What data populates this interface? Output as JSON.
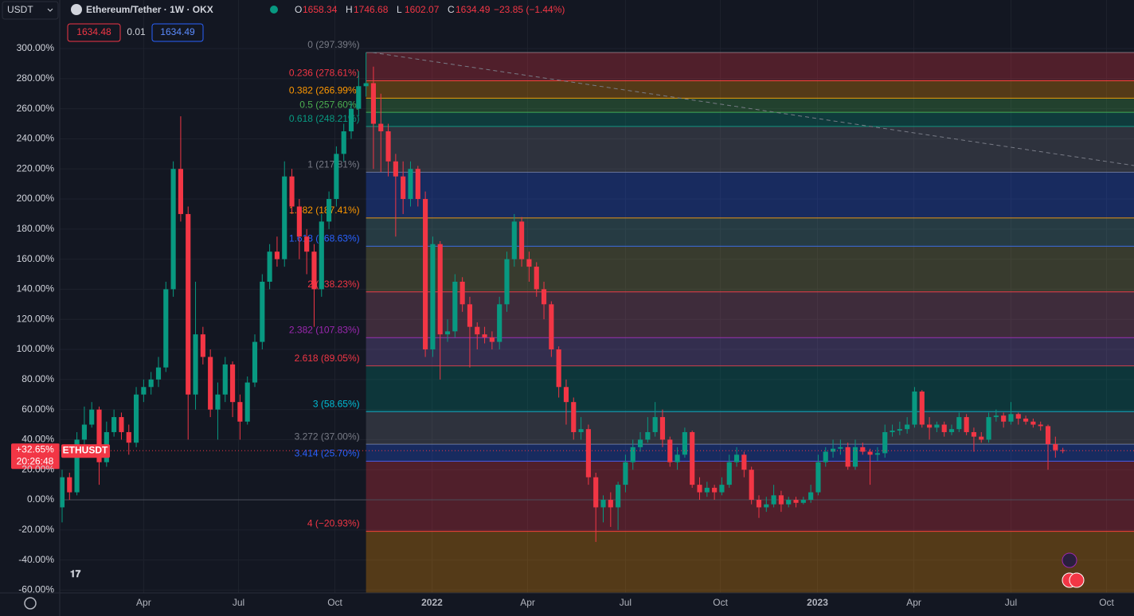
{
  "toolbar": {
    "symbol_menu": "USDT",
    "title": "Ethereum/Tether · 1W · OKX",
    "ohlc": [
      {
        "label": "O",
        "value": "1658.34"
      },
      {
        "label": "H",
        "value": "1746.68"
      },
      {
        "label": "L",
        "value": "1602.07"
      },
      {
        "label": "C",
        "value": "1634.49"
      }
    ],
    "change": "−23.85 (−1.44%)",
    "bid": "1634.48",
    "spread": "0.01",
    "ask": "1634.49"
  },
  "chart_data": {
    "type": "candlestick",
    "up_color": "#089981",
    "down_color": "#f23645",
    "open": [
      -5,
      15,
      5,
      40,
      50,
      60,
      25,
      45,
      55,
      45,
      38,
      70,
      75,
      80,
      88,
      140,
      220,
      190,
      70,
      110,
      95,
      60,
      70,
      90,
      65,
      52,
      78,
      105,
      145,
      165,
      160,
      215,
      195,
      175,
      165,
      140,
      185,
      200,
      230,
      245,
      260,
      275,
      277,
      250,
      245,
      225,
      215,
      200,
      220,
      200,
      100,
      170,
      110,
      112,
      145,
      130,
      115,
      110,
      108,
      105,
      130,
      160,
      185,
      160,
      155,
      140,
      130,
      100,
      75,
      65,
      45,
      47,
      15,
      -5,
      0,
      -5,
      10,
      25,
      35,
      40,
      45,
      55,
      40,
      25,
      30,
      45,
      10,
      5,
      8,
      5,
      10,
      25,
      30,
      20,
      0,
      -5,
      -3,
      3,
      -3,
      0,
      -2,
      0,
      5,
      25,
      32,
      34,
      35,
      22,
      35,
      32,
      30,
      31,
      45,
      46,
      47,
      50,
      72,
      50,
      48,
      50,
      45,
      47,
      55,
      45,
      42,
      40,
      55,
      56,
      52,
      57,
      54,
      52,
      50,
      49,
      37,
      33
    ],
    "high": [
      20,
      18,
      45,
      62,
      65,
      62,
      52,
      60,
      58,
      50,
      75,
      80,
      85,
      95,
      145,
      225,
      255,
      195,
      145,
      115,
      100,
      78,
      95,
      92,
      70,
      82,
      110,
      150,
      170,
      175,
      225,
      220,
      200,
      180,
      170,
      190,
      205,
      235,
      250,
      265,
      285,
      297.39,
      288,
      270,
      250,
      230,
      225,
      225,
      222,
      205,
      175,
      172,
      120,
      150,
      148,
      135,
      118,
      115,
      112,
      135,
      165,
      190,
      188,
      165,
      158,
      145,
      132,
      102,
      80,
      68,
      55,
      50,
      18,
      3,
      5,
      12,
      30,
      40,
      45,
      55,
      65,
      60,
      42,
      35,
      48,
      46,
      15,
      12,
      10,
      15,
      30,
      35,
      32,
      22,
      3,
      2,
      10,
      6,
      2,
      2,
      2,
      10,
      30,
      35,
      40,
      40,
      38,
      40,
      38,
      34,
      35,
      50,
      50,
      52,
      55,
      75,
      73,
      55,
      52,
      52,
      50,
      58,
      57,
      48,
      45,
      58,
      60,
      58,
      65,
      58,
      56,
      54,
      52,
      50,
      42,
      34.6
    ],
    "low": [
      -15,
      0,
      3,
      35,
      48,
      10,
      22,
      42,
      40,
      30,
      35,
      65,
      70,
      75,
      85,
      135,
      185,
      40,
      60,
      90,
      55,
      40,
      65,
      55,
      40,
      50,
      75,
      100,
      140,
      155,
      155,
      190,
      160,
      150,
      115,
      135,
      180,
      195,
      225,
      240,
      255,
      268,
      220,
      218,
      215,
      175,
      190,
      195,
      195,
      95,
      95,
      80,
      105,
      108,
      125,
      88,
      100,
      104,
      100,
      100,
      125,
      155,
      155,
      145,
      135,
      120,
      95,
      68,
      50,
      40,
      40,
      10,
      -28,
      -15,
      -18,
      -20,
      5,
      20,
      32,
      38,
      42,
      35,
      22,
      20,
      28,
      8,
      0,
      2,
      0,
      3,
      8,
      22,
      15,
      -3,
      -12,
      -8,
      -5,
      -8,
      -5,
      -5,
      -3,
      -2,
      3,
      22,
      28,
      30,
      20,
      20,
      30,
      10,
      26,
      28,
      42,
      43,
      44,
      48,
      48,
      40,
      45,
      42,
      43,
      45,
      43,
      32,
      38,
      38,
      52,
      48,
      50,
      50,
      50,
      48,
      46,
      20,
      28,
      31
    ],
    "close": [
      15,
      5,
      40,
      50,
      60,
      25,
      45,
      55,
      45,
      38,
      70,
      75,
      80,
      88,
      140,
      220,
      190,
      70,
      110,
      95,
      60,
      70,
      90,
      65,
      52,
      78,
      105,
      145,
      165,
      160,
      215,
      195,
      175,
      165,
      140,
      185,
      200,
      230,
      245,
      260,
      275,
      277,
      250,
      245,
      225,
      215,
      200,
      220,
      200,
      100,
      170,
      110,
      112,
      145,
      130,
      115,
      110,
      108,
      105,
      130,
      160,
      185,
      160,
      155,
      140,
      130,
      100,
      75,
      65,
      45,
      47,
      15,
      -5,
      0,
      -5,
      10,
      25,
      35,
      40,
      45,
      55,
      40,
      25,
      30,
      45,
      10,
      5,
      8,
      5,
      10,
      25,
      30,
      20,
      0,
      -5,
      -3,
      3,
      -3,
      0,
      -2,
      0,
      5,
      25,
      32,
      34,
      35,
      22,
      35,
      32,
      30,
      31,
      45,
      46,
      47,
      50,
      72,
      50,
      48,
      50,
      45,
      47,
      55,
      45,
      42,
      40,
      55,
      56,
      52,
      57,
      54,
      52,
      50,
      49,
      37,
      33,
      32.65
    ],
    "xlim": [
      -0.32,
      144.6
    ],
    "ylim": [
      -61.9,
      332.3
    ],
    "xticks": [
      {
        "value": 11,
        "label": "Apr"
      },
      {
        "value": 23.8,
        "label": "Jul"
      },
      {
        "value": 36.8,
        "label": "Oct"
      },
      {
        "value": 49.9,
        "label": "2022"
      },
      {
        "value": 62.8,
        "label": "Apr"
      },
      {
        "value": 76,
        "label": "Jul"
      },
      {
        "value": 88.8,
        "label": "Oct"
      },
      {
        "value": 101.9,
        "label": "2023"
      },
      {
        "value": 114.9,
        "label": "Apr"
      },
      {
        "value": 128,
        "label": "Jul"
      },
      {
        "value": 140.9,
        "label": "Oct"
      }
    ],
    "yticks": [
      {
        "value": 300,
        "label": "300.00%"
      },
      {
        "value": 280,
        "label": "280.00%"
      },
      {
        "value": 260,
        "label": "260.00%"
      },
      {
        "value": 240,
        "label": "240.00%"
      },
      {
        "value": 220,
        "label": "220.00%"
      },
      {
        "value": 200,
        "label": "200.00%"
      },
      {
        "value": 180,
        "label": "180.00%"
      },
      {
        "value": 160,
        "label": "160.00%"
      },
      {
        "value": 140,
        "label": "140.00%"
      },
      {
        "value": 120,
        "label": "120.00%"
      },
      {
        "value": 100,
        "label": "100.00%"
      },
      {
        "value": 80,
        "label": "80.00%"
      },
      {
        "value": 60,
        "label": "60.00%"
      },
      {
        "value": 40,
        "label": "40.00%"
      },
      {
        "value": 20,
        "label": "20.00%"
      },
      {
        "value": 0,
        "label": "0.00%"
      },
      {
        "value": -20,
        "label": "-20.00%"
      },
      {
        "value": -40,
        "label": "-40.00%"
      },
      {
        "value": -60,
        "label": "-60.00%"
      }
    ],
    "grid": true,
    "fib_start": 41,
    "fib_levels": [
      {
        "label": "0 (297.39%)",
        "value": 297.39,
        "color": "#787b86"
      },
      {
        "label": "0.236 (278.61%)",
        "value": 278.61,
        "color": "#f23645",
        "fill": "#f23645"
      },
      {
        "label": "0.382 (266.99%)",
        "value": 266.99,
        "color": "#ff9800",
        "fill": "#ff9800"
      },
      {
        "label": "0.5 (257.60%)",
        "value": 257.6,
        "color": "#4caf50",
        "fill": "#4caf50"
      },
      {
        "label": "0.618 (248.21%)",
        "value": 248.21,
        "color": "#089981",
        "fill": "#089981"
      },
      {
        "label": "1 (217.81%)",
        "value": 217.81,
        "color": "#787b86",
        "fill": "#787b86"
      },
      {
        "label": "1.382 (187.41%)",
        "value": 187.41,
        "color": "#ff9800",
        "fill": "#2962ff"
      },
      {
        "label": "1.618 (168.63%)",
        "value": 168.63,
        "color": "#2962ff",
        "fill": "#5b9c9c"
      },
      {
        "label": "2 (138.23%)",
        "value": 138.23,
        "color": "#f23645",
        "fill": "#9c9c4f"
      },
      {
        "label": "2.382 (107.83%)",
        "value": 107.83,
        "color": "#9c27b0",
        "fill": "#b0667e"
      },
      {
        "label": "2.618 (89.05%)",
        "value": 89.05,
        "color": "#f23645",
        "fill": "#8a6bc2"
      },
      {
        "label": "3 (58.65%)",
        "value": 58.65,
        "color": "#00bcd4",
        "fill": "#00897b"
      },
      {
        "label": "3.272 (37.00%)",
        "value": 37,
        "color": "#787b86",
        "fill": "#787b86"
      },
      {
        "label": "3.414 (25.70%)",
        "value": 25.7,
        "color": "#2962ff",
        "fill": "#2962ff"
      },
      {
        "label": "4 (−20.93%)",
        "value": -20.93,
        "color": "#f23645",
        "fill": "#f23645"
      }
    ],
    "extension_fill": "#ff9800",
    "last": {
      "value": 32.65,
      "label": "+32.65%",
      "symbol": "ETHUSDT",
      "countdown": "20:26:48",
      "color": "#f23645"
    }
  }
}
